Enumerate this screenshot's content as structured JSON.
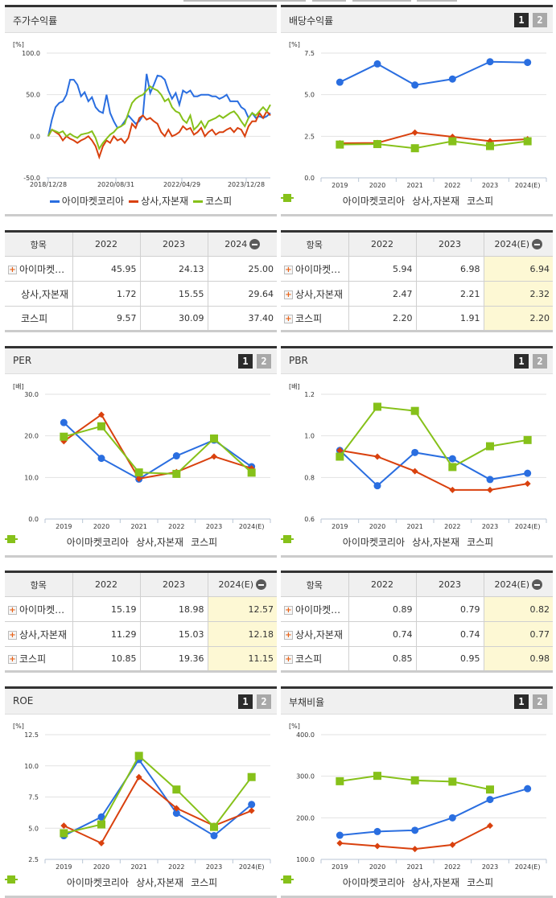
{
  "series_names": [
    "아이마켓코리아",
    "상사,자본재",
    "코스피"
  ],
  "colors": {
    "company": "#2a6ee0",
    "sector": "#d9410e",
    "kospi": "#86c11a",
    "estimate_bg": "#fdf8d4"
  },
  "pager": {
    "page1": "1",
    "page2": "2"
  },
  "panels": {
    "stock_return": {
      "title": "주가수익률",
      "unit": "[%]",
      "table": {
        "headers": [
          "항목",
          "2022",
          "2023",
          "2024"
        ],
        "rows": [
          {
            "name": "아이마켓…",
            "values": [
              "45.95",
              "24.13",
              "25.00"
            ]
          },
          {
            "name": "상사,자본재",
            "values": [
              "1.72",
              "15.55",
              "29.64"
            ]
          },
          {
            "name": "코스피",
            "values": [
              "9.57",
              "30.09",
              "37.40"
            ]
          }
        ]
      }
    },
    "dividend": {
      "title": "배당수익률",
      "unit": "[%]",
      "table": {
        "headers": [
          "항목",
          "2022",
          "2023",
          "2024(E)"
        ],
        "rows": [
          {
            "name": "아이마켓…",
            "values": [
              "5.94",
              "6.98",
              "6.94"
            ]
          },
          {
            "name": "상사,자본재",
            "values": [
              "2.47",
              "2.21",
              "2.32"
            ]
          },
          {
            "name": "코스피",
            "values": [
              "2.20",
              "1.91",
              "2.20"
            ]
          }
        ]
      }
    },
    "per": {
      "title": "PER",
      "unit": "[배]",
      "table": {
        "headers": [
          "항목",
          "2022",
          "2023",
          "2024(E)"
        ],
        "rows": [
          {
            "name": "아이마켓…",
            "values": [
              "15.19",
              "18.98",
              "12.57"
            ]
          },
          {
            "name": "상사,자본재",
            "values": [
              "11.29",
              "15.03",
              "12.18"
            ]
          },
          {
            "name": "코스피",
            "values": [
              "10.85",
              "19.36",
              "11.15"
            ]
          }
        ]
      }
    },
    "pbr": {
      "title": "PBR",
      "unit": "[배]",
      "table": {
        "headers": [
          "항목",
          "2022",
          "2023",
          "2024(E)"
        ],
        "rows": [
          {
            "name": "아이마켓…",
            "values": [
              "0.89",
              "0.79",
              "0.82"
            ]
          },
          {
            "name": "상사,자본재",
            "values": [
              "0.74",
              "0.74",
              "0.77"
            ]
          },
          {
            "name": "코스피",
            "values": [
              "0.85",
              "0.95",
              "0.98"
            ]
          }
        ]
      }
    },
    "roe": {
      "title": "ROE",
      "unit": "[%]"
    },
    "debt": {
      "title": "부채비율",
      "unit": "[%]"
    }
  },
  "chart_data": [
    {
      "id": "stock_return",
      "type": "line",
      "title": "주가수익률",
      "ylabel": "[%]",
      "ylim": [
        -50,
        100
      ],
      "yticks": [
        "100.0",
        "50.0",
        "0.0",
        "-50.0"
      ],
      "x_tick_labels": [
        "2018/12/28",
        "2020/08/31",
        "2022/04/29",
        "2023/12/28"
      ],
      "grid": true,
      "legend_position": "bottom",
      "series": [
        {
          "name": "아이마켓코리아",
          "values": [
            0,
            20,
            35,
            40,
            42,
            50,
            68,
            68,
            62,
            48,
            53,
            42,
            47,
            35,
            30,
            28,
            50,
            28,
            18,
            10,
            12,
            18,
            25,
            20,
            15,
            18,
            25,
            75,
            52,
            62,
            73,
            72,
            68,
            55,
            45,
            52,
            38,
            55,
            52,
            55,
            48,
            48,
            50,
            50,
            50,
            48,
            48,
            45,
            47,
            50,
            42,
            42,
            42,
            35,
            32,
            22,
            28,
            22,
            24,
            22,
            24,
            28
          ]
        },
        {
          "name": "상사,자본재",
          "values": [
            0,
            8,
            5,
            2,
            -5,
            0,
            -3,
            -5,
            -8,
            -5,
            -3,
            0,
            -5,
            -12,
            -25,
            -12,
            -5,
            -8,
            0,
            -5,
            -3,
            -8,
            -2,
            15,
            10,
            22,
            25,
            20,
            22,
            18,
            15,
            5,
            0,
            8,
            0,
            2,
            5,
            12,
            8,
            10,
            2,
            5,
            10,
            0,
            5,
            8,
            2,
            5,
            5,
            8,
            10,
            5,
            10,
            8,
            0,
            12,
            18,
            18,
            28,
            22,
            30,
            25
          ]
        },
        {
          "name": "코스피",
          "values": [
            0,
            8,
            6,
            4,
            6,
            0,
            3,
            0,
            -2,
            2,
            3,
            4,
            6,
            -2,
            -15,
            -8,
            -3,
            2,
            5,
            10,
            12,
            15,
            28,
            40,
            45,
            48,
            50,
            55,
            60,
            57,
            55,
            50,
            42,
            45,
            35,
            30,
            28,
            20,
            16,
            25,
            8,
            12,
            18,
            10,
            18,
            20,
            22,
            25,
            22,
            25,
            28,
            30,
            25,
            18,
            12,
            22,
            28,
            25,
            30,
            35,
            30,
            38
          ]
        }
      ]
    },
    {
      "id": "dividend",
      "type": "line",
      "title": "배당수익률",
      "ylabel": "[%]",
      "ylim": [
        0,
        7.5
      ],
      "yticks": [
        "7.5",
        "5.0",
        "2.5",
        "0.0"
      ],
      "categories": [
        "2019",
        "2020",
        "2021",
        "2022",
        "2023",
        "2024(E)"
      ],
      "grid": true,
      "legend_position": "bottom",
      "series": [
        {
          "name": "아이마켓코리아",
          "values": [
            5.75,
            6.85,
            5.58,
            5.94,
            6.98,
            6.94
          ]
        },
        {
          "name": "상사,자본재",
          "values": [
            2.08,
            2.1,
            2.72,
            2.47,
            2.21,
            2.32
          ]
        },
        {
          "name": "코스피",
          "values": [
            2.0,
            2.03,
            1.78,
            2.2,
            1.91,
            2.2
          ]
        }
      ]
    },
    {
      "id": "per",
      "type": "line",
      "title": "PER",
      "ylabel": "[배]",
      "ylim": [
        0,
        30
      ],
      "yticks": [
        "30.0",
        "20.0",
        "10.0",
        "0.0"
      ],
      "categories": [
        "2019",
        "2020",
        "2021",
        "2022",
        "2023",
        "2024(E)"
      ],
      "grid": true,
      "legend_position": "bottom",
      "series": [
        {
          "name": "아이마켓코리아",
          "values": [
            23.2,
            14.6,
            9.6,
            15.19,
            18.98,
            12.57
          ]
        },
        {
          "name": "상사,자본재",
          "values": [
            18.7,
            25.1,
            9.7,
            11.29,
            15.03,
            12.18
          ]
        },
        {
          "name": "코스피",
          "values": [
            19.8,
            22.3,
            11.2,
            10.85,
            19.36,
            11.15
          ]
        }
      ]
    },
    {
      "id": "pbr",
      "type": "line",
      "title": "PBR",
      "ylabel": "[배]",
      "ylim": [
        0.6,
        1.2
      ],
      "yticks": [
        "1.2",
        "1.0",
        "0.8",
        "0.6"
      ],
      "categories": [
        "2019",
        "2020",
        "2021",
        "2022",
        "2023",
        "2024(E)"
      ],
      "grid": true,
      "legend_position": "bottom",
      "series": [
        {
          "name": "아이마켓코리아",
          "values": [
            0.93,
            0.76,
            0.92,
            0.89,
            0.79,
            0.82
          ]
        },
        {
          "name": "상사,자본재",
          "values": [
            0.93,
            0.9,
            0.83,
            0.74,
            0.74,
            0.77
          ]
        },
        {
          "name": "코스피",
          "values": [
            0.9,
            1.14,
            1.12,
            0.85,
            0.95,
            0.98
          ]
        }
      ]
    },
    {
      "id": "roe",
      "type": "line",
      "title": "ROE",
      "ylabel": "[%]",
      "ylim": [
        2.5,
        12.5
      ],
      "yticks": [
        "12.5",
        "10.0",
        "7.5",
        "5.0",
        "2.5"
      ],
      "categories": [
        "2019",
        "2020",
        "2021",
        "2022",
        "2023",
        "2024(E)"
      ],
      "grid": true,
      "legend_position": "bottom",
      "series": [
        {
          "name": "아이마켓코리아",
          "values": [
            4.4,
            5.9,
            10.5,
            6.2,
            4.4,
            6.9
          ]
        },
        {
          "name": "상사,자본재",
          "values": [
            5.2,
            3.8,
            9.1,
            6.6,
            5.2,
            6.4
          ]
        },
        {
          "name": "코스피",
          "values": [
            4.6,
            5.3,
            10.8,
            8.1,
            5.1,
            9.1
          ]
        }
      ]
    },
    {
      "id": "debt",
      "type": "line",
      "title": "부채비율",
      "ylabel": "[%]",
      "ylim": [
        100,
        400
      ],
      "yticks": [
        "400.0",
        "300.0",
        "200.0",
        "100.0"
      ],
      "categories": [
        "2019",
        "2020",
        "2021",
        "2022",
        "2023",
        "2024(E)"
      ],
      "grid": true,
      "legend_position": "bottom",
      "series": [
        {
          "name": "아이마켓코리아",
          "values": [
            158,
            167,
            170,
            200,
            244,
            270
          ]
        },
        {
          "name": "상사,자본재",
          "values": [
            139,
            132,
            125,
            135,
            181,
            null
          ]
        },
        {
          "name": "코스피",
          "values": [
            288,
            301,
            290,
            287,
            268,
            null
          ]
        }
      ]
    }
  ]
}
